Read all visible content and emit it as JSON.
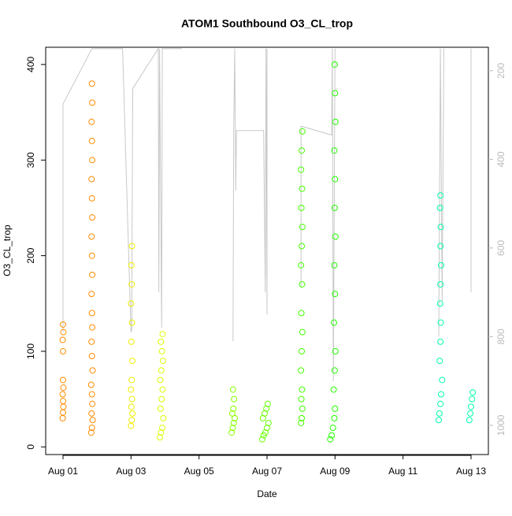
{
  "chart_data": {
    "type": "scatter",
    "title": "ATOM1 Southbound O3_CL_trop",
    "x_label": "Date",
    "y_label": "O3_CL_trop",
    "xlim": [
      0.49,
      13.51
    ],
    "xticks": [
      {
        "value": 1,
        "label": "Aug 01"
      },
      {
        "value": 3,
        "label": "Aug 03"
      },
      {
        "value": 5,
        "label": "Aug 05"
      },
      {
        "value": 7,
        "label": "Aug 07"
      },
      {
        "value": 9,
        "label": "Aug 09"
      },
      {
        "value": 11,
        "label": "Aug 11"
      },
      {
        "value": 13,
        "label": "Aug 13"
      }
    ],
    "ylim": [
      -8,
      418
    ],
    "yticks": [
      0,
      100,
      200,
      300,
      400
    ],
    "y2lim": [
      1066,
      147
    ],
    "y2ticks": [
      200,
      400,
      600,
      800,
      1000
    ],
    "y2_color": "#bbbbbb",
    "series": [
      {
        "color": "#ff8c00",
        "x": [
          0.99,
          1.0,
          1.01,
          1.0,
          0.99,
          1.01,
          1.0,
          1.0,
          0.99,
          1.01,
          1.0,
          1.83,
          1.85,
          1.87,
          1.84,
          1.86,
          1.85,
          1.83,
          1.87,
          1.85,
          1.84,
          1.86,
          1.85,
          1.84,
          1.86,
          1.85,
          1.84,
          1.86,
          1.85,
          1.84,
          1.86,
          1.85,
          1.84,
          1.86,
          1.85
        ],
        "values": [
          30,
          36,
          42,
          48,
          55,
          62,
          70,
          100,
          112,
          120,
          128,
          15,
          20,
          28,
          35,
          45,
          55,
          65,
          80,
          95,
          110,
          125,
          140,
          160,
          180,
          200,
          220,
          240,
          260,
          280,
          300,
          320,
          340,
          360,
          380
        ]
      },
      {
        "color": "#eeee00",
        "x": [
          3.0,
          3.02,
          3.04,
          3.01,
          3.03,
          3.0,
          3.02,
          3.04,
          3.01,
          3.03,
          3.0,
          3.02,
          3.01,
          3.03
        ],
        "values": [
          22,
          28,
          35,
          42,
          50,
          60,
          70,
          90,
          110,
          130,
          150,
          170,
          190,
          210
        ]
      },
      {
        "color": "#ddff00",
        "x": [
          3.85,
          3.88,
          3.92,
          3.95,
          3.87,
          3.9,
          3.93,
          3.86,
          3.89,
          3.94,
          3.91,
          3.88,
          3.93
        ],
        "values": [
          10,
          15,
          20,
          30,
          40,
          50,
          60,
          70,
          80,
          90,
          100,
          110,
          118
        ]
      },
      {
        "color": "#88ff00",
        "x": [
          5.96,
          5.99,
          6.02,
          6.05,
          5.98,
          6.01,
          6.03,
          6.0
        ],
        "values": [
          15,
          20,
          25,
          30,
          35,
          40,
          50,
          60
        ]
      },
      {
        "color": "#66ff00",
        "x": [
          6.86,
          6.9,
          6.95,
          7.0,
          7.04,
          6.88,
          6.93,
          6.98,
          7.02
        ],
        "values": [
          8,
          12,
          15,
          20,
          25,
          30,
          35,
          40,
          45
        ]
      },
      {
        "color": "#44ff00",
        "x": [
          8.0,
          8.02,
          8.04,
          8.01,
          8.03,
          8.0,
          8.02,
          8.04,
          8.01,
          8.03,
          8.0,
          8.02,
          8.04,
          8.01,
          8.03,
          8.0,
          8.02,
          8.04
        ],
        "values": [
          25,
          30,
          40,
          50,
          60,
          80,
          100,
          120,
          140,
          170,
          190,
          210,
          230,
          250,
          270,
          290,
          310,
          330
        ]
      },
      {
        "color": "#22ff00",
        "x": [
          8.86,
          8.9,
          8.94,
          8.98,
          9.0,
          8.96,
          8.99,
          9.01,
          8.97,
          9.0,
          8.98,
          9.01,
          8.99,
          9.0,
          8.98,
          9.01,
          9.0,
          8.99
        ],
        "values": [
          8,
          12,
          20,
          30,
          40,
          60,
          80,
          100,
          130,
          160,
          190,
          220,
          250,
          280,
          310,
          340,
          370,
          400
        ]
      },
      {
        "color": "#00ffb0",
        "x": [
          12.05,
          12.07,
          12.1,
          12.12,
          12.15,
          12.08,
          12.1,
          12.11,
          12.09,
          12.1,
          12.12,
          12.1,
          12.11,
          12.09,
          12.1,
          12.95,
          12.98,
          13.0,
          13.03,
          13.05
        ],
        "values": [
          28,
          35,
          45,
          55,
          70,
          90,
          110,
          130,
          150,
          170,
          190,
          210,
          230,
          250,
          263,
          28,
          35,
          42,
          50,
          57
        ]
      },
      {
        "color": "#c8c8c8",
        "axis": "y2",
        "mode": "line",
        "x": [
          1.0,
          1.0,
          1.85,
          2.75,
          3.0,
          3.02,
          3.05,
          3.8,
          3.82,
          3.84,
          3.9,
          3.92,
          4.5,
          null,
          6.0,
          6.02,
          6.05,
          6.08,
          6.1,
          6.9,
          6.95,
          6.97,
          7.0,
          7.0,
          null,
          8.0,
          8.0,
          8.9,
          8.92,
          8.95,
          9.0,
          null,
          12.05,
          12.1,
          12.15,
          12.2,
          null,
          13.0,
          13.0
        ],
        "values": [
          790,
          275,
          150,
          150,
          790,
          785,
          240,
          150,
          700,
          150,
          780,
          150,
          150,
          null,
          810,
          330,
          150,
          470,
          335,
          335,
          700,
          150,
          750,
          150,
          null,
          690,
          325,
          345,
          150,
          900,
          150,
          null,
          800,
          150,
          720,
          150,
          null,
          700,
          150
        ]
      }
    ]
  }
}
